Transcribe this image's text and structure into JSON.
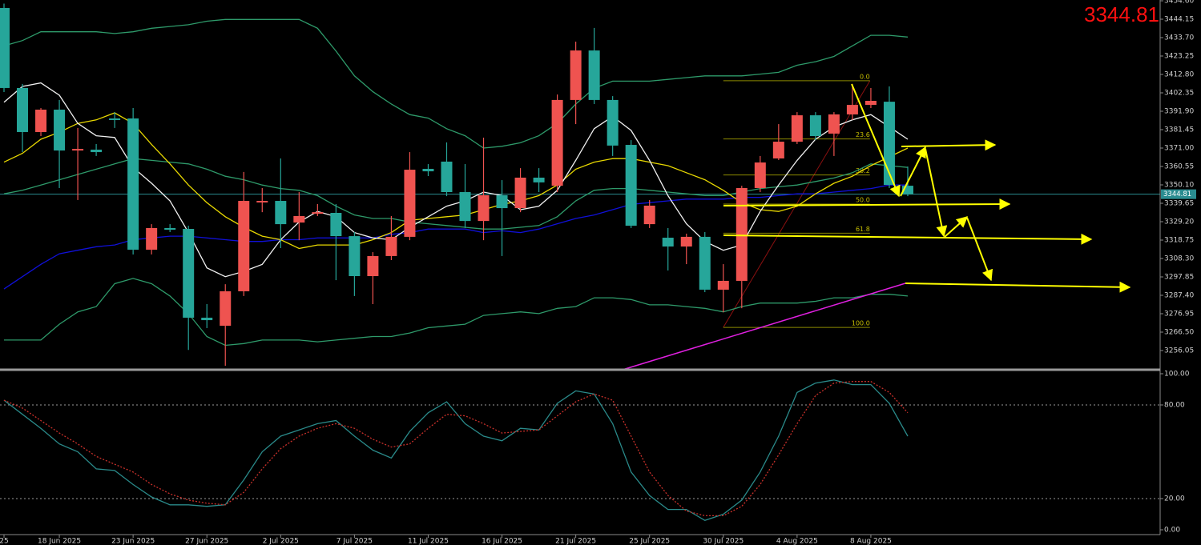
{
  "chart_data": [
    {
      "type": "candlestick",
      "categories": [
        "25",
        null,
        null,
        "18 Jun 2025",
        null,
        null,
        null,
        "23 Jun 2025",
        null,
        null,
        null,
        "27 Jun 2025",
        null,
        null,
        null,
        "2 Jul 2025",
        null,
        null,
        null,
        "7 Jul 2025",
        null,
        null,
        null,
        "11 Jul 2025",
        null,
        null,
        null,
        "16 Jul 2025",
        null,
        null,
        null,
        "21 Jul 2025",
        null,
        null,
        null,
        "25 Jul 2025",
        null,
        null,
        null,
        "30 Jul 2025",
        null,
        null,
        null,
        "4 Aug 2025",
        null,
        null,
        null,
        "8 Aug 2025",
        null,
        null
      ],
      "open": [
        3450.5,
        3405.1,
        3380.1,
        3392.8,
        3369.6,
        3370.1,
        3387.8,
        3387.8,
        3313.3,
        3325.6,
        3325.1,
        3274.7,
        3270.1,
        3289.7,
        3340.1,
        3341.0,
        3328.7,
        3333.7,
        3334.2,
        3321.0,
        3298.3,
        3309.7,
        3320.6,
        3359.2,
        3363.3,
        3346.0,
        3329.6,
        3344.2,
        3336.9,
        3354.2,
        3349.6,
        3398.3,
        3426.4,
        3398.3,
        3372.8,
        3327.8,
        3320.1,
        3315.1,
        3320.6,
        3290.6,
        3295.6,
        3348.3,
        3365.1,
        3374.6,
        3389.6,
        3379.2,
        3390.1,
        3395.5,
        3397.3,
        3349.6
      ],
      "high": [
        3453.0,
        3407.4,
        3393.7,
        3398.3,
        3382.4,
        3373.3,
        3391.4,
        3393.7,
        3327.8,
        3327.8,
        3326.9,
        3282.4,
        3293.7,
        3357.4,
        3348.3,
        3365.1,
        3346.0,
        3339.2,
        3339.2,
        3323.3,
        3311.9,
        3332.4,
        3368.7,
        3361.9,
        3374.2,
        3361.9,
        3376.9,
        3352.8,
        3359.6,
        3359.6,
        3401.4,
        3431.4,
        3439.2,
        3400.5,
        3375.5,
        3341.5,
        3325.6,
        3322.4,
        3323.3,
        3305.1,
        3349.6,
        3366.5,
        3384.6,
        3391.4,
        3391.4,
        3391.4,
        3407.4,
        3405.1,
        3406.0,
        3360.5
      ],
      "low": [
        3402.8,
        3368.7,
        3377.8,
        3348.3,
        3341.5,
        3366.5,
        3382.4,
        3310.6,
        3310.6,
        3323.3,
        3256.4,
        3268.8,
        3247.4,
        3287.0,
        3334.6,
        3314.2,
        3318.7,
        3332.4,
        3296.0,
        3287.0,
        3282.4,
        3307.4,
        3318.7,
        3355.1,
        3343.7,
        3325.6,
        3318.7,
        3309.7,
        3334.6,
        3346.0,
        3346.0,
        3384.6,
        3396.0,
        3366.5,
        3325.6,
        3325.6,
        3301.5,
        3305.1,
        3289.2,
        3277.8,
        3280.1,
        3346.0,
        3364.2,
        3373.3,
        3375.5,
        3366.5,
        3386.9,
        3393.7,
        3348.3,
        3343.7
      ],
      "close": [
        3405.1,
        3380.1,
        3392.8,
        3369.6,
        3370.5,
        3368.7,
        3386.9,
        3313.3,
        3325.6,
        3324.6,
        3274.7,
        3273.3,
        3289.7,
        3341.0,
        3341.0,
        3327.8,
        3332.4,
        3334.6,
        3321.0,
        3298.3,
        3309.7,
        3320.6,
        3358.7,
        3357.8,
        3346.0,
        3329.6,
        3344.2,
        3336.9,
        3354.2,
        3351.5,
        3398.3,
        3426.4,
        3398.3,
        3372.4,
        3326.9,
        3338.3,
        3315.1,
        3320.6,
        3290.6,
        3295.6,
        3348.3,
        3362.8,
        3374.6,
        3389.6,
        3377.8,
        3390.1,
        3395.5,
        3397.8,
        3350.1,
        3344.81
      ],
      "rising_color": "#ef5350",
      "falling_color": "#26a69a",
      "series": [
        {
          "color": "#2e9a6a",
          "values": [
            3429,
            3432,
            3437,
            3437,
            3437,
            3437,
            3436,
            3437,
            3439,
            3440,
            3441,
            3443,
            3444,
            3444,
            3444,
            3444,
            3444,
            3439,
            3426,
            3412,
            3403,
            3396,
            3390,
            3388,
            3382,
            3378,
            3371,
            3372,
            3374,
            3378,
            3385,
            3396,
            3405,
            3409,
            3409,
            3409,
            3410,
            3411,
            3412,
            3412,
            3412,
            3413,
            3414,
            3418,
            3420,
            3423,
            3429,
            3435,
            3435,
            3434
          ]
        },
        {
          "color": "#2e9a6a",
          "values": [
            3345,
            3347,
            3350,
            3353,
            3356,
            3359,
            3362,
            3365,
            3364,
            3363,
            3362,
            3359,
            3355,
            3353,
            3350,
            3348,
            3347,
            3344,
            3338,
            3333,
            3331,
            3331,
            3329,
            3328,
            3327,
            3326,
            3325,
            3325,
            3326,
            3327,
            3332,
            3341,
            3347,
            3348,
            3348,
            3347,
            3346,
            3345,
            3344,
            3344,
            3346,
            3348,
            3349,
            3350,
            3352,
            3354,
            3357,
            3362,
            3361,
            3360
          ]
        },
        {
          "color": "#2e9a6a",
          "values": [
            3262,
            3262,
            3262,
            3271,
            3278,
            3281,
            3294,
            3297,
            3294,
            3287,
            3277,
            3264,
            3259,
            3260,
            3262,
            3262,
            3262,
            3261,
            3262,
            3263,
            3264,
            3264,
            3266,
            3269,
            3270,
            3271,
            3276,
            3277,
            3278,
            3277,
            3280,
            3281,
            3286,
            3286,
            3285,
            3282,
            3282,
            3281,
            3280,
            3278,
            3281,
            3283,
            3283,
            3283,
            3284,
            3286,
            3286,
            3288,
            3288,
            3287
          ]
        },
        {
          "color": "#1010d8",
          "values": [
            3291,
            3298,
            3305,
            3311,
            3313,
            3315,
            3316,
            3319,
            3320,
            3321,
            3321,
            3320,
            3319,
            3318,
            3318,
            3319,
            3319,
            3320,
            3320,
            3320,
            3320,
            3322,
            3323,
            3325,
            3325,
            3325,
            3323,
            3324,
            3323,
            3325,
            3328,
            3331,
            3333,
            3336,
            3339,
            3340,
            3341,
            3342,
            3342,
            3342,
            3343,
            3343,
            3344,
            3345,
            3345,
            3346,
            3347,
            3348,
            3350,
            3350
          ]
        },
        {
          "color": "#e8d800",
          "values": [
            3363,
            3368,
            3376,
            3380,
            3385,
            3387,
            3391,
            3385,
            3373,
            3362,
            3350,
            3340,
            3332,
            3326,
            3321,
            3319,
            3314,
            3316,
            3316,
            3316,
            3319,
            3323,
            3330,
            3331,
            3332,
            3333,
            3336,
            3339,
            3341,
            3344,
            3350,
            3359,
            3363,
            3365,
            3365,
            3363,
            3361,
            3357,
            3353,
            3347,
            3340,
            3336,
            3335,
            3338,
            3345,
            3351,
            3355,
            3361,
            3366,
            3371
          ]
        },
        {
          "color": "#f0f0f0",
          "values": [
            3397,
            3406,
            3408,
            3401,
            3385,
            3378,
            3377,
            3360,
            3351,
            3341,
            3323,
            3303,
            3298,
            3301,
            3305,
            3319,
            3329,
            3335,
            3332,
            3323,
            3320,
            3319,
            3326,
            3332,
            3338,
            3341,
            3346,
            3344,
            3336,
            3338,
            3347,
            3364,
            3382,
            3389,
            3381,
            3364,
            3344,
            3328,
            3318,
            3313,
            3316,
            3335,
            3350,
            3364,
            3376,
            3383,
            3387,
            3390,
            3383,
            3376
          ]
        }
      ],
      "ylim": [
        3245.15,
        3455.05
      ],
      "yticks": [
        {
          "value": 3454.6,
          "label": "3454.60"
        },
        3444.15,
        {
          "value": 3433.7,
          "label": "3433.70"
        },
        3423.25,
        {
          "value": 3412.8,
          "label": "3412.80"
        },
        3402.35,
        {
          "value": 3391.9,
          "label": "3391.90"
        },
        3381.45,
        {
          "value": 3371,
          "label": "3371.00"
        },
        3360.55,
        {
          "value": 3350.1,
          "label": "3350.10"
        },
        3339.65,
        {
          "value": 3329.2,
          "label": "3329.20"
        },
        3318.75,
        {
          "value": 3308.3,
          "label": "3308.30"
        },
        3297.85,
        {
          "value": 3287.4,
          "label": "3287.40"
        },
        3276.95,
        {
          "value": 3266.5,
          "label": "3266.50"
        },
        3256.05
      ],
      "last_price": 3344.81,
      "last_price_color": "#2a8c90",
      "fibonacci": {
        "high": 3409.2,
        "low": 3269.2,
        "color": "#8c8a00",
        "levels": [
          {
            "value": 0,
            "label": "0.0"
          },
          23.6,
          38.2,
          {
            "value": 50,
            "label": "50.0"
          },
          61.8,
          {
            "value": 100,
            "label": "100.0"
          }
        ]
      }
    },
    {
      "type": "line",
      "series": [
        {
          "color": "#2a8a8a",
          "values": [
            83,
            74,
            65,
            55,
            50,
            39,
            38,
            29,
            21,
            16,
            16,
            15,
            16,
            32,
            50,
            60,
            64,
            68,
            70,
            60,
            51,
            46,
            63,
            75,
            82,
            68,
            60,
            57,
            65,
            64,
            81,
            89,
            87,
            68,
            37,
            22,
            13,
            13,
            6,
            10,
            19,
            37,
            60,
            88,
            94,
            96,
            93,
            93,
            81,
            60
          ]
        },
        {
          "color": "#c8302a",
          "style": "dotted",
          "values": [
            83,
            78,
            70,
            62,
            55,
            47,
            42,
            37,
            29,
            23,
            19,
            17,
            16,
            24,
            39,
            52,
            60,
            65,
            68,
            65,
            58,
            53,
            55,
            65,
            74,
            73,
            68,
            62,
            63,
            64,
            73,
            82,
            87,
            83,
            60,
            37,
            22,
            12,
            9,
            9,
            15,
            29,
            48,
            68,
            86,
            94,
            95,
            95,
            88,
            75
          ]
        }
      ],
      "ylim": [
        -3.08,
        102.05
      ],
      "yticks": [
        {
          "value": 100,
          "label": "100.00"
        },
        {
          "value": 80,
          "label": "80.00"
        },
        {
          "value": 20,
          "label": "20.00"
        },
        {
          "value": 0,
          "label": "0.00"
        }
      ],
      "dashed_levels": [
        80,
        20
      ]
    }
  ]
}
